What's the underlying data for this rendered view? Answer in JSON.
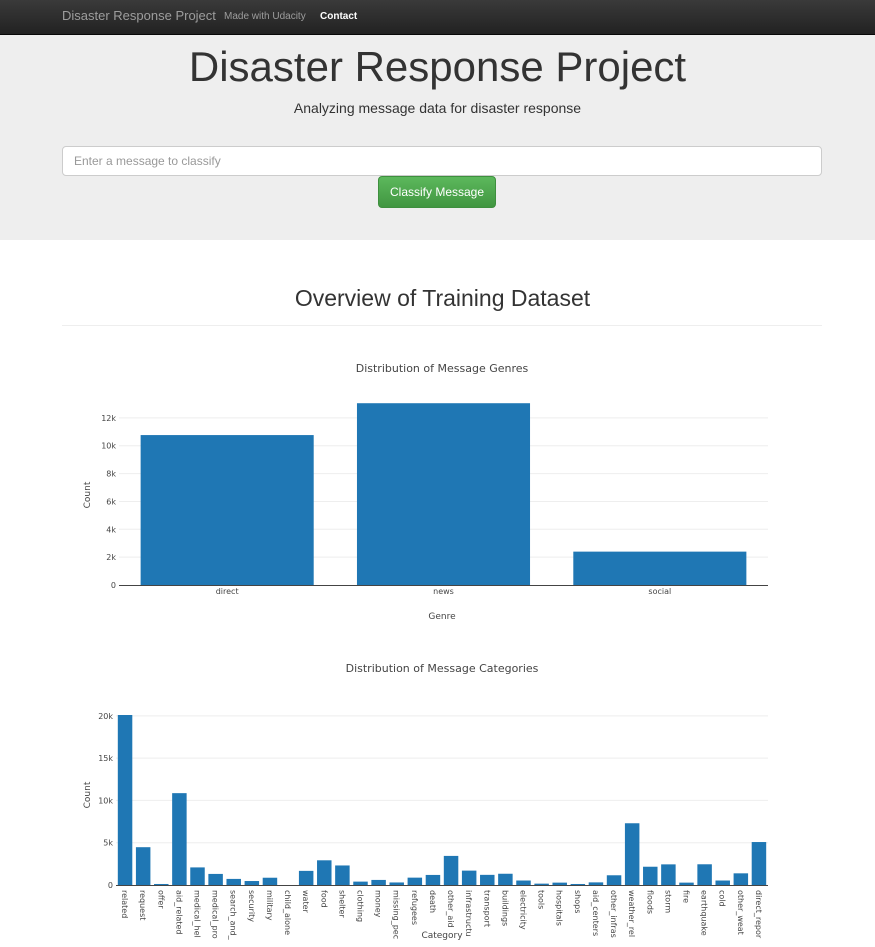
{
  "navbar": {
    "brand": "Disaster Response Project",
    "links": [
      "Made with Udacity",
      "Contact"
    ]
  },
  "jumbotron": {
    "title": "Disaster Response Project",
    "subtitle": "Analyzing message data for disaster response",
    "input_placeholder": "Enter a message to classify",
    "button_label": "Classify Message"
  },
  "section": {
    "title": "Overview of Training Dataset"
  },
  "chart_data": [
    {
      "type": "bar",
      "title": "Distribution of Message Genres",
      "xlabel": "Genre",
      "ylabel": "Count",
      "categories": [
        "direct",
        "news",
        "social"
      ],
      "values": [
        10766,
        13054,
        2396
      ],
      "ylim": [
        0,
        13500
      ],
      "yticks": [
        0,
        2000,
        4000,
        6000,
        8000,
        10000,
        12000
      ],
      "ytick_labels": [
        "0",
        "2k",
        "4k",
        "6k",
        "8k",
        "10k",
        "12k"
      ],
      "grid": true,
      "color": "#1f77b4"
    },
    {
      "type": "bar",
      "title": "Distribution of Message Categories",
      "xlabel": "Category",
      "ylabel": "Count",
      "categories": [
        "related",
        "request",
        "offer",
        "aid_related",
        "medical_hel",
        "medical_pro",
        "search_and_",
        "security",
        "military",
        "child_alone",
        "water",
        "food",
        "shelter",
        "clothing",
        "money",
        "missing_pec",
        "refugees",
        "death",
        "other_aid",
        "infrastructu",
        "transport",
        "buildings",
        "electricity",
        "tools",
        "hospitals",
        "shops",
        "aid_centers",
        "other_infras",
        "weather_rel",
        "floods",
        "storm",
        "fire",
        "earthquake",
        "cold",
        "other_weat",
        "direct_repor"
      ],
      "values": [
        20100,
        4470,
        120,
        10860,
        2080,
        1310,
        720,
        470,
        860,
        0,
        1670,
        2920,
        2310,
        400,
        600,
        300,
        870,
        1190,
        3440,
        1700,
        1200,
        1330,
        530,
        160,
        280,
        120,
        310,
        1150,
        7300,
        2160,
        2440,
        280,
        2450,
        530,
        1380,
        5080
      ],
      "ylim": [
        0,
        20100
      ],
      "yticks": [
        0,
        5000,
        10000,
        15000,
        20000
      ],
      "ytick_labels": [
        "0",
        "5k",
        "10k",
        "15k",
        "20k"
      ],
      "grid": true,
      "color": "#1f77b4"
    }
  ]
}
